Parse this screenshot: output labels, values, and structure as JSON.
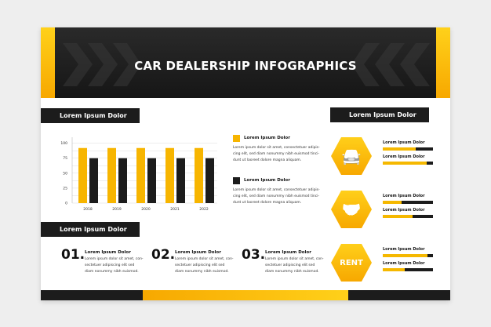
{
  "title": "CAR DEALERSHIP INFOGRAPHICS",
  "colors": {
    "accent": "#f7b500",
    "dark": "#1c1c1c"
  },
  "chart_section": {
    "heading": "Lorem Ipsum Dolor"
  },
  "chart_data": {
    "type": "bar",
    "categories": [
      "2018",
      "2019",
      "2020",
      "2021",
      "2022"
    ],
    "series": [
      {
        "values": [
          92,
          92,
          92,
          92,
          92
        ],
        "color": "#f7b500"
      },
      {
        "values": [
          75,
          75,
          75,
          75,
          75
        ],
        "color": "#1c1c1c"
      }
    ],
    "yticks": [
      "0",
      "25",
      "50",
      "75",
      "100"
    ],
    "ylim": [
      0,
      110
    ],
    "grid": true
  },
  "legend": [
    {
      "label": "Lorem Ipsum Dolor",
      "text": [
        "Lorem ipsum dolor sit amet, consectetuer adipis-",
        "cing elit, sed diam nonummy nibh euismod tinci-",
        "dunt ut laoreet dolore magna aliquam."
      ]
    },
    {
      "label": "Lorem Ipsum Dolor",
      "text": [
        "Lorem ipsum dolor sit amet, consectetuer adipis-",
        "cing elit, sed diam nonummy nibh euismod tinci-",
        "dunt ut laoreet dolore magna aliquam."
      ]
    }
  ],
  "steps_section": {
    "heading": "Lorem Ipsum Dolor",
    "steps": [
      {
        "num": "01.",
        "title": "Lorem Ipsum Dolor",
        "text": [
          "Lorem ipsum dolor sit amet, con-",
          "sectetuer adipiscing elit sed",
          "diam nonummy nibh euismod."
        ]
      },
      {
        "num": "02.",
        "title": "Lorem Ipsum Dolor",
        "text": [
          "Lorem ipsum dolor sit amet, con-",
          "sectetuer adipiscing elit sed",
          "diam nonummy nibh euismod."
        ]
      },
      {
        "num": "03.",
        "title": "Lorem Ipsum Dolor",
        "text": [
          "Lorem ipsum dolor sit amet, con-",
          "sectetuer adipiscing elit sed",
          "diam nonummy nibh euismod."
        ]
      }
    ]
  },
  "services_section": {
    "heading": "Lorem Ipsum Dolor",
    "items": [
      {
        "icon": "car-price-icon",
        "bars": [
          {
            "label": "Lorem Ipsum Dolor",
            "value": 0.65
          },
          {
            "label": "Lorem Ipsum Dolor",
            "value": 0.87
          }
        ]
      },
      {
        "icon": "car-loan-hand-icon",
        "bars": [
          {
            "label": "Lorem Ipsum Dolor",
            "value": 0.38
          },
          {
            "label": "Lorem Ipsum Dolor",
            "value": 0.59
          }
        ]
      },
      {
        "icon": "car-rent-icon",
        "badge": "RENT",
        "bars": [
          {
            "label": "Lorem Ipsum Dolor",
            "value": 0.89
          },
          {
            "label": "Lorem Ipsum Dolor",
            "value": 0.44
          }
        ]
      }
    ]
  }
}
